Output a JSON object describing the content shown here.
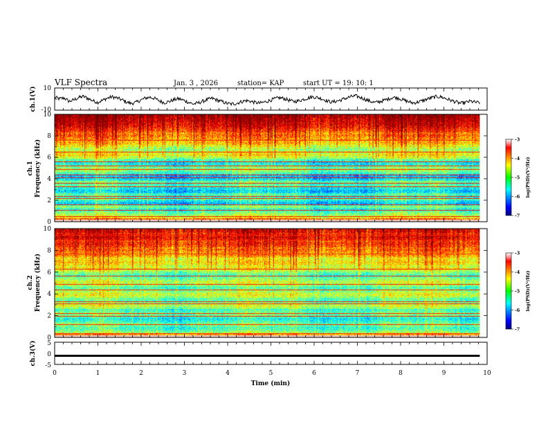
{
  "header": {
    "title": "VLF Spectra",
    "date": "Jan. 3 , 2026",
    "station": "station= KAP",
    "start": "start UT = 19: 10: 1"
  },
  "colors": {
    "spectrum_low": "#00007f",
    "spectrum_high": "#ff0000",
    "trace": "#000000"
  },
  "chart_data": [
    {
      "type": "line",
      "name": "ch1-waveform",
      "ylabel": "ch.1(V)",
      "ylim": [
        -10,
        10
      ],
      "yticks": [
        "10",
        "-10"
      ],
      "xlim": [
        0,
        10
      ],
      "x_extent_min": 9.83,
      "values": [
        1.6,
        0.2,
        1.0,
        -2.1,
        -0.8,
        1.3,
        2.4,
        0.5,
        -1.5,
        -3.0,
        -1.2,
        0.8,
        2.0,
        1.1,
        -0.5,
        -2.6,
        -4.0,
        -3.1,
        -1.0,
        0.9,
        1.7,
        0.4,
        -1.8,
        -3.3,
        -2.2,
        -0.6,
        0.3,
        -1.1,
        -2.9,
        -4.4,
        -3.6,
        -2.0,
        -0.4,
        0.6,
        -0.9,
        -2.3,
        -3.8,
        -4.6,
        -3.9,
        -2.5,
        -1.4,
        -2.0,
        -3.1,
        -3.7,
        -2.6,
        -1.3,
        0.1,
        1.2,
        0.5,
        -1.0,
        -2.2,
        -1.7,
        -0.3,
        0.9,
        2.0,
        1.4,
        0.2,
        -1.6,
        -2.7,
        -1.9,
        -0.7,
        0.8,
        2.1,
        2.8,
        1.5,
        -0.2,
        -1.9,
        -3.2,
        -2.4,
        -1.1,
        0.4,
        1.6,
        0.9,
        -0.8,
        -2.3,
        -3.5,
        -2.8,
        -1.5,
        0.0,
        1.2,
        2.3,
        1.8,
        0.3,
        -1.2,
        -2.6,
        -3.9,
        -3.1,
        -2.0,
        -2.8,
        -3.4
      ],
      "title": "VLF Spectra"
    },
    {
      "type": "heatmap",
      "name": "ch1-spectrogram",
      "ylabel_line1": "ch.1",
      "ylabel_line2": "Frequency (kHz)",
      "ylim": [
        0,
        10
      ],
      "yticks": [
        "0",
        "2",
        "4",
        "6",
        "8",
        "10"
      ],
      "xlim": [
        0,
        10
      ],
      "x_extent_min": 9.83,
      "band_levels": [
        -3.6,
        -4.0,
        -4.6,
        -4.9,
        -5.0,
        -5.2,
        -5.5,
        -5.4,
        -5.1,
        -5.5,
        -5.8,
        -5.6,
        -5.2,
        -5.5,
        -5.4,
        -5.3,
        -5.7,
        -5.8,
        -5.6,
        -5.5,
        -5.3,
        -5.4,
        -5.2,
        -5.6,
        -5.8,
        -5.9,
        -5.7,
        -5.3,
        -5.1,
        -5.0,
        -5.2,
        -5.4,
        -5.6,
        -5.7,
        -5.4,
        -5.0,
        -4.8,
        -4.6,
        -4.7,
        -4.9,
        -5.1,
        -4.9,
        -4.7,
        -4.5,
        -4.4,
        -4.5,
        -4.3,
        -4.2,
        -4.1,
        -4.2,
        -4.0,
        -3.9,
        -3.8,
        -3.7,
        -3.6,
        -3.6,
        -3.5,
        -3.5,
        -3.4,
        -3.4
      ],
      "line_freqs_khz": [
        0.2,
        0.5,
        1.1,
        1.6,
        2.2,
        2.4,
        3.3,
        3.6,
        4.1,
        4.4,
        4.9,
        5.2,
        5.6,
        6.5,
        7.6
      ],
      "colorbar": {
        "min": -7,
        "max": -3,
        "ticks": [
          "-3",
          "-4",
          "-5",
          "-6",
          "-7"
        ],
        "label": "log(PSD)(V²/Hz)"
      }
    },
    {
      "type": "heatmap",
      "name": "ch2-spectrogram",
      "ylabel_line1": "ch.2",
      "ylabel_line2": "Frequency (kHz)",
      "ylim": [
        0,
        10
      ],
      "yticks": [
        "0",
        "2",
        "4",
        "6",
        "8",
        "10"
      ],
      "xlim": [
        0,
        10
      ],
      "x_extent_min": 9.83,
      "band_levels": [
        -3.6,
        -4.2,
        -4.8,
        -5.1,
        -5.3,
        -5.4,
        -5.2,
        -5.0,
        -5.3,
        -5.5,
        -5.6,
        -5.4,
        -5.2,
        -5.1,
        -5.3,
        -5.4,
        -5.0,
        -4.8,
        -4.9,
        -5.1,
        -5.3,
        -5.2,
        -4.9,
        -4.7,
        -4.8,
        -5.0,
        -5.2,
        -5.3,
        -5.1,
        -4.9,
        -4.8,
        -4.9,
        -5.1,
        -5.3,
        -5.4,
        -5.2,
        -5.0,
        -4.8,
        -4.7,
        -4.8,
        -4.6,
        -4.5,
        -4.6,
        -4.7,
        -4.5,
        -4.3,
        -4.4,
        -4.2,
        -4.1,
        -4.2,
        -4.0,
        -3.9,
        -3.9,
        -4.0,
        -3.8,
        -3.7,
        -3.8,
        -3.9,
        -3.7,
        -3.7
      ],
      "line_freqs_khz": [
        0.2,
        0.4,
        1.2,
        2.0,
        2.2,
        3.1,
        3.3,
        4.4,
        4.9,
        5.7,
        6.3,
        7.7,
        9.0,
        9.4
      ],
      "colorbar": {
        "min": -7,
        "max": -3,
        "ticks": [
          "-3",
          "-4",
          "-5",
          "-6",
          "-7"
        ],
        "label": "log(PSD)(V²/Hz)"
      }
    },
    {
      "type": "line",
      "name": "ch3-waveform",
      "ylabel": "ch.3(V)",
      "ylim": [
        -5,
        5
      ],
      "yticks": [
        "5",
        "0",
        "-5"
      ],
      "xlim": [
        0,
        10
      ],
      "x_extent_min": 9.83,
      "band_center": -1.1,
      "band_halfwidth": 0.45,
      "xlabel": "Time (min)",
      "xticks": [
        "0",
        "1",
        "2",
        "3",
        "4",
        "5",
        "6",
        "7",
        "8",
        "9",
        "10"
      ]
    }
  ]
}
